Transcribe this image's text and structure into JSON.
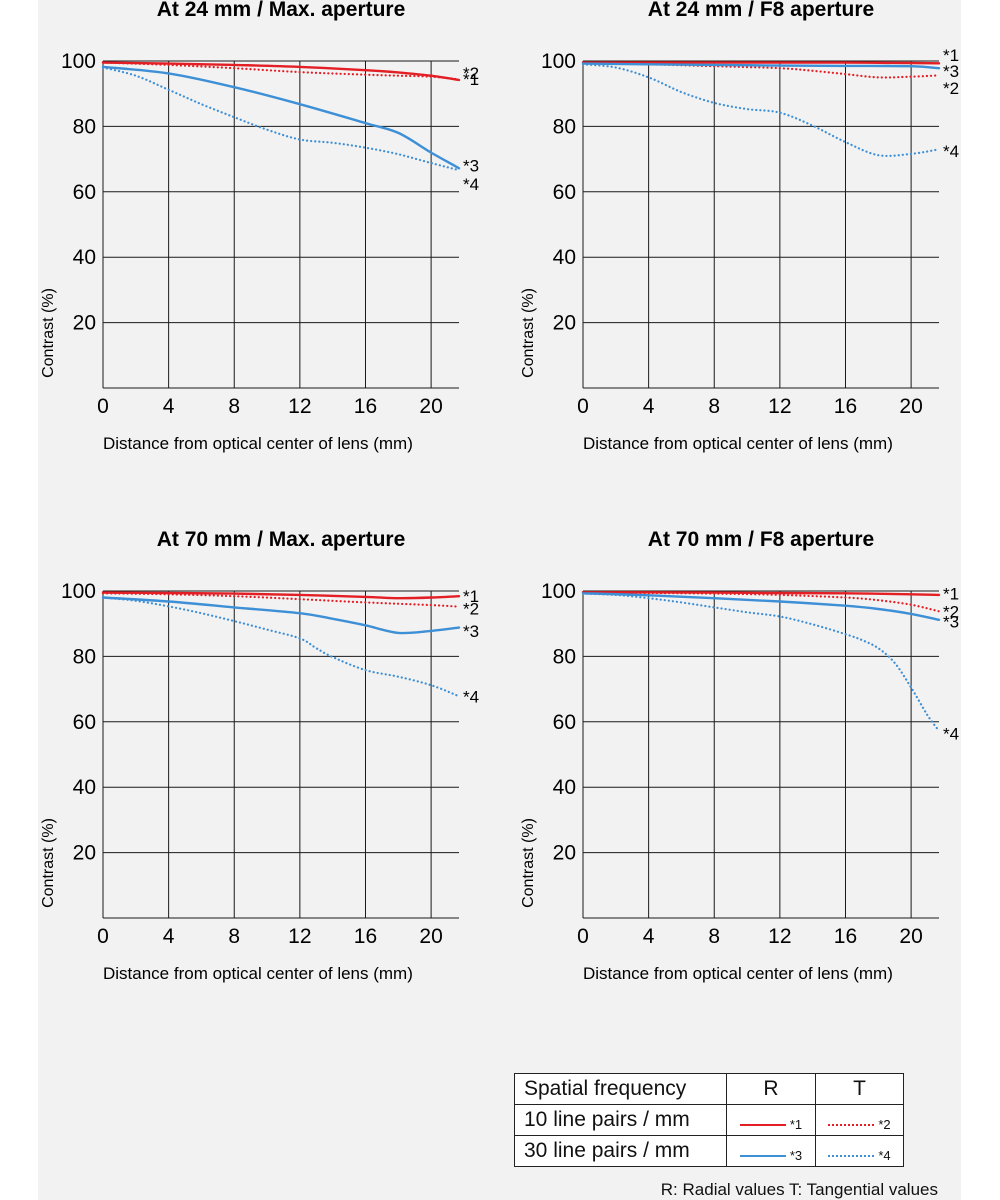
{
  "colors": {
    "red": "#e31e24",
    "blue": "#3d8fd6",
    "grid": "#1a1a1a",
    "background": "#f2f2f2"
  },
  "chart_data": [
    {
      "type": "line",
      "title": "At 24 mm / Max. aperture",
      "xlabel": "Distance from optical center of lens (mm)",
      "ylabel": "Contrast (%)",
      "xlim": [
        0,
        21.7
      ],
      "ylim": [
        0,
        100
      ],
      "xticks": [
        "0",
        "4",
        "8",
        "12",
        "16",
        "20"
      ],
      "yticks": [
        "20",
        "40",
        "60",
        "80",
        "100"
      ],
      "grid": true,
      "series": [
        {
          "name": "*1",
          "style": "solid",
          "color": "red",
          "label_offset": 0.3,
          "x": [
            0,
            4,
            8,
            12,
            16,
            18,
            20,
            21.7
          ],
          "y": [
            99.5,
            99.2,
            98.8,
            98.2,
            97.2,
            96.5,
            95.5,
            94.2
          ]
        },
        {
          "name": "*2",
          "style": "dotted",
          "color": "red",
          "label_offset": 2.0,
          "x": [
            0,
            4,
            8,
            12,
            16,
            18,
            20,
            21.7
          ],
          "y": [
            99.5,
            98.8,
            97.8,
            96.6,
            95.8,
            95.5,
            95.2,
            94.4
          ]
        },
        {
          "name": "*3",
          "style": "solid",
          "color": "blue",
          "label_offset": 0.8,
          "x": [
            0,
            4,
            8,
            12,
            16,
            18,
            20,
            21.7
          ],
          "y": [
            98.2,
            96.2,
            92.0,
            86.8,
            81.0,
            78.0,
            72.0,
            67.2
          ]
        },
        {
          "name": "*4",
          "style": "dotted",
          "color": "blue",
          "label_offset": -4.2,
          "x": [
            0,
            2,
            4,
            6,
            8,
            10,
            12,
            14,
            16,
            18,
            20,
            21.7
          ],
          "y": [
            98.0,
            95.5,
            91.2,
            86.8,
            82.8,
            79.0,
            76.0,
            75.0,
            73.5,
            71.5,
            68.8,
            66.6
          ]
        }
      ]
    },
    {
      "type": "line",
      "title": "At 24 mm / F8 aperture",
      "xlabel": "Distance from optical center of lens (mm)",
      "ylabel": "Contrast (%)",
      "xlim": [
        0,
        21.7
      ],
      "ylim": [
        0,
        100
      ],
      "xticks": [
        "0",
        "4",
        "8",
        "12",
        "16",
        "20"
      ],
      "yticks": [
        "20",
        "40",
        "60",
        "80",
        "100"
      ],
      "grid": true,
      "series": [
        {
          "name": "*1",
          "style": "solid",
          "color": "red",
          "label_offset": 2.5,
          "x": [
            0,
            4,
            8,
            12,
            16,
            20,
            21.7
          ],
          "y": [
            99.5,
            99.5,
            99.5,
            99.5,
            99.5,
            99.4,
            99.3
          ]
        },
        {
          "name": "*2",
          "style": "dotted",
          "color": "red",
          "label_offset": -3.8,
          "x": [
            0,
            4,
            8,
            12,
            14,
            16,
            18,
            20,
            21.7
          ],
          "y": [
            99.5,
            99.0,
            98.4,
            97.8,
            97.0,
            96.0,
            95.0,
            95.2,
            95.6
          ]
        },
        {
          "name": "*3",
          "style": "solid",
          "color": "blue",
          "label_offset": -0.8,
          "x": [
            0,
            4,
            8,
            12,
            16,
            20,
            21.7
          ],
          "y": [
            99.2,
            99.0,
            98.8,
            98.6,
            98.5,
            98.4,
            97.8
          ]
        },
        {
          "name": "*4",
          "style": "dotted",
          "color": "blue",
          "label_offset": -0.5,
          "x": [
            0,
            2,
            4,
            6,
            8,
            10,
            12,
            14,
            16,
            18,
            20,
            21.7
          ],
          "y": [
            99.0,
            98.0,
            95.0,
            90.5,
            87.2,
            85.3,
            84.2,
            80.2,
            75.2,
            71.2,
            71.6,
            73.0
          ]
        }
      ]
    },
    {
      "type": "line",
      "title": "At 70 mm / Max. aperture",
      "xlabel": "Distance from optical center of lens (mm)",
      "ylabel": "Contrast (%)",
      "xlim": [
        0,
        21.7
      ],
      "ylim": [
        0,
        100
      ],
      "xticks": [
        "0",
        "4",
        "8",
        "12",
        "16",
        "20"
      ],
      "yticks": [
        "20",
        "40",
        "60",
        "80",
        "100"
      ],
      "grid": true,
      "series": [
        {
          "name": "*1",
          "style": "solid",
          "color": "red",
          "label_offset": 0.0,
          "x": [
            0,
            4,
            8,
            12,
            16,
            18,
            20,
            21.7
          ],
          "y": [
            99.5,
            99.4,
            99.2,
            98.8,
            98.2,
            97.8,
            98.0,
            98.4
          ]
        },
        {
          "name": "*2",
          "style": "dotted",
          "color": "red",
          "label_offset": -0.5,
          "x": [
            0,
            4,
            8,
            12,
            16,
            20,
            21.7
          ],
          "y": [
            99.3,
            99.0,
            98.4,
            97.5,
            96.5,
            95.7,
            95.2
          ]
        },
        {
          "name": "*3",
          "style": "solid",
          "color": "blue",
          "label_offset": -1.0,
          "x": [
            0,
            4,
            8,
            12,
            14,
            16,
            18,
            20,
            21.7
          ],
          "y": [
            98.0,
            96.8,
            95.0,
            93.2,
            91.5,
            89.5,
            87.2,
            87.8,
            88.8
          ]
        },
        {
          "name": "*4",
          "style": "dotted",
          "color": "blue",
          "label_offset": 0.0,
          "x": [
            0,
            2,
            4,
            6,
            8,
            10,
            12,
            13,
            14,
            16,
            18,
            20,
            21.7
          ],
          "y": [
            98.0,
            97.0,
            95.3,
            93.2,
            90.8,
            88.2,
            85.5,
            82.5,
            79.8,
            75.8,
            73.8,
            71.2,
            67.8
          ]
        }
      ]
    },
    {
      "type": "line",
      "title": "At 70 mm / F8 aperture",
      "xlabel": "Distance from optical center of lens (mm)",
      "ylabel": "Contrast (%)",
      "xlim": [
        0,
        21.7
      ],
      "ylim": [
        0,
        100
      ],
      "xticks": [
        "0",
        "4",
        "8",
        "12",
        "16",
        "20"
      ],
      "yticks": [
        "20",
        "40",
        "60",
        "80",
        "100"
      ],
      "grid": true,
      "series": [
        {
          "name": "*1",
          "style": "solid",
          "color": "red",
          "label_offset": 0.5,
          "x": [
            0,
            4,
            8,
            12,
            16,
            20,
            21.7
          ],
          "y": [
            99.6,
            99.6,
            99.5,
            99.4,
            99.3,
            99.0,
            98.8
          ]
        },
        {
          "name": "*2",
          "style": "dotted",
          "color": "red",
          "label_offset": 0.0,
          "x": [
            0,
            4,
            8,
            12,
            16,
            18,
            20,
            21.7
          ],
          "y": [
            99.5,
            99.4,
            99.2,
            98.8,
            98.0,
            97.2,
            95.8,
            93.8
          ]
        },
        {
          "name": "*3",
          "style": "solid",
          "color": "blue",
          "label_offset": -0.5,
          "x": [
            0,
            4,
            8,
            12,
            16,
            18,
            20,
            21.7
          ],
          "y": [
            99.3,
            98.7,
            97.8,
            96.8,
            95.5,
            94.5,
            93.0,
            91.2
          ]
        },
        {
          "name": "*4",
          "style": "dotted",
          "color": "blue",
          "label_offset": -0.8,
          "x": [
            0,
            2,
            4,
            6,
            8,
            10,
            12,
            14,
            16,
            17,
            18,
            19,
            20,
            21,
            21.7
          ],
          "y": [
            99.2,
            98.8,
            97.8,
            96.5,
            95.0,
            93.5,
            92.2,
            89.8,
            86.8,
            85.0,
            82.5,
            78.0,
            70.5,
            62.0,
            57.2
          ]
        }
      ]
    }
  ],
  "legend": {
    "header": [
      "Spatial frequency",
      "R",
      "T"
    ],
    "rows": [
      {
        "label": "10 line pairs / mm",
        "r_sample": "*1",
        "t_sample": "*2",
        "color": "red"
      },
      {
        "label": "30 line pairs / mm",
        "r_sample": "*3",
        "t_sample": "*4",
        "color": "blue"
      }
    ]
  },
  "note": "R: Radial values  T: Tangential values"
}
